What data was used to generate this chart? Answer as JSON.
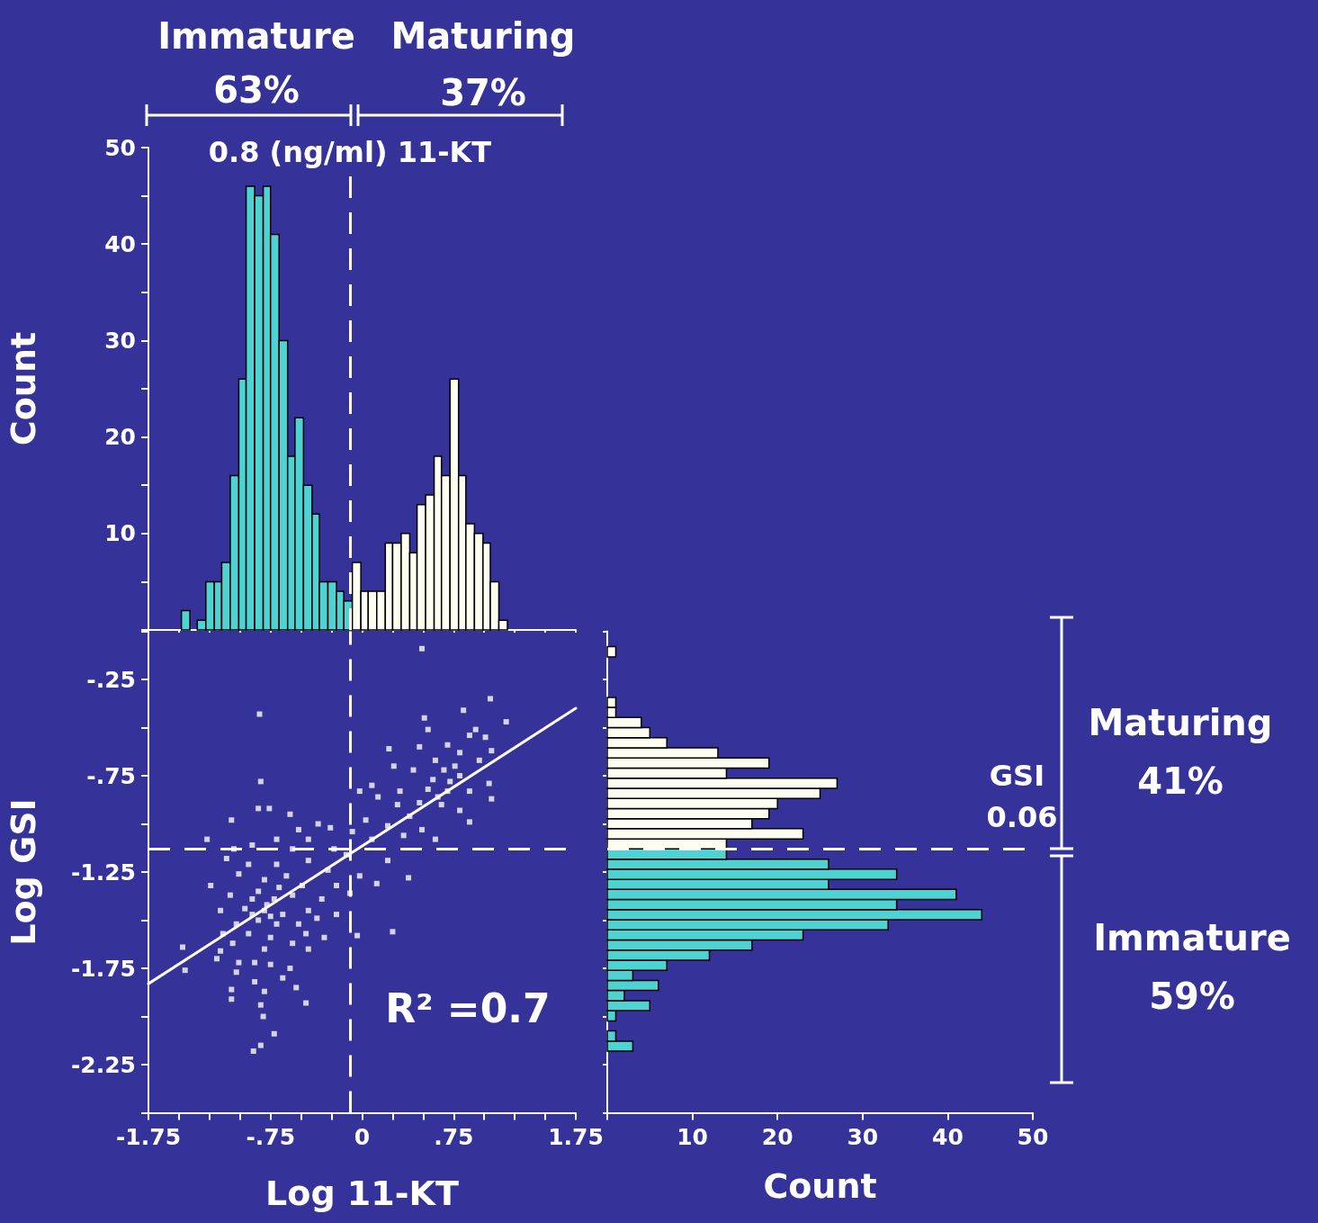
{
  "chart_data": [
    {
      "type": "histogram",
      "ylabel": "Count",
      "bins": [
        -1.48,
        -1.41,
        -1.35,
        -1.28,
        -1.21,
        -1.15,
        -1.08,
        -1.01,
        -0.95,
        -0.88,
        -0.81,
        -0.75,
        -0.68,
        -0.61,
        -0.55,
        -0.48,
        -0.41,
        -0.35,
        -0.28,
        -0.21,
        -0.15,
        -0.08,
        -0.01,
        0.05,
        0.12,
        0.19,
        0.25,
        0.32,
        0.39,
        0.45,
        0.52,
        0.59,
        0.65,
        0.72,
        0.79,
        0.85,
        0.92,
        0.99,
        1.05,
        1.12,
        1.19
      ],
      "series": [
        {
          "color": "#4fd2d2",
          "values": [
            2,
            0,
            1,
            5,
            5,
            7,
            16,
            26,
            46,
            45,
            46,
            41,
            30,
            18,
            22,
            15,
            12,
            5,
            5,
            4,
            3,
            null,
            null,
            null,
            null,
            null,
            null,
            null,
            null,
            null,
            null,
            null,
            null,
            null,
            null,
            null,
            null,
            null,
            null,
            null
          ]
        },
        {
          "color": "#fdfdf0",
          "values": [
            null,
            null,
            null,
            null,
            null,
            null,
            null,
            null,
            null,
            null,
            null,
            null,
            null,
            null,
            null,
            null,
            null,
            null,
            null,
            null,
            null,
            7,
            4,
            4,
            4,
            9,
            9,
            10,
            8,
            13,
            14,
            18,
            16,
            26,
            16,
            11,
            10,
            9,
            5,
            1
          ]
        }
      ],
      "xlim": [
        -1.75,
        1.75
      ],
      "xticks": [
        {
          "value": -1.75,
          "label": null
        },
        {
          "value": -1.5,
          "label": null
        },
        {
          "value": -1.25,
          "label": null
        },
        {
          "value": -1,
          "label": null
        },
        {
          "value": -0.75,
          "label": null
        },
        {
          "value": -0.5,
          "label": null
        },
        {
          "value": -0.25,
          "label": null
        },
        {
          "value": 0,
          "label": null
        },
        {
          "value": 0.25,
          "label": null
        },
        {
          "value": 0.5,
          "label": null
        },
        {
          "value": 0.75,
          "label": null
        },
        {
          "value": 1,
          "label": null
        },
        {
          "value": 1.25,
          "label": null
        },
        {
          "value": 1.5,
          "label": null
        },
        {
          "value": 1.75,
          "label": null
        }
      ],
      "ylim": [
        0,
        50
      ],
      "yticks": [
        {
          "value": 0,
          "label": null
        },
        {
          "value": 5,
          "label": null
        },
        10,
        {
          "value": 15,
          "label": null
        },
        20,
        {
          "value": 25,
          "label": null
        },
        30,
        {
          "value": 35,
          "label": null
        },
        40,
        {
          "value": 45,
          "label": null
        },
        50
      ],
      "tick_labels": "y",
      "ref_lines": [
        {
          "axis": "x",
          "value": -0.1,
          "label": "0.8 (ng/ml) 11-KT",
          "line_style": "dashed",
          "color": "#ffffff"
        }
      ],
      "annotations": [
        "Immature",
        "63%",
        "Maturing",
        "37%"
      ]
    },
    {
      "type": "scatter",
      "xlabel": "Log 11-KT",
      "ylabel": "Log GSI",
      "marker": "square",
      "series": [
        {
          "color": "#fdfdf0",
          "x": [
            0.49,
            1.05,
            -0.84,
            0.83,
            0.51,
            1.18,
            0.54,
            0.93,
            0.88,
            1.01,
            0.7,
            0.22,
            0.47,
            0.8,
            1.06,
            0.6,
            0.96,
            0.26,
            0.42,
            0.67,
            0.8,
            -0.83,
            0.08,
            1.04,
            -0.02,
            0.31,
            0.54,
            0.7,
            0.88,
            0.13,
            1.06,
            0.29,
            0.47,
            0.65,
            0.8,
            -0.85,
            -0.76,
            -0.59,
            0.39,
            0.88,
            -1.07,
            0.03,
            0.21,
            0.49,
            -0.52,
            -0.36,
            -0.26,
            0.6,
            -0.08,
            0.08,
            -1.27,
            -0.7,
            -0.44,
            0.34,
            -1.05,
            -0.9,
            -0.57,
            -0.23,
            -1.11,
            -0.13,
            0.21,
            -0.93,
            -0.7,
            -0.44,
            -0.28,
            -1.24,
            -1.01,
            -0.8,
            -0.62,
            -0.49,
            -0.21,
            -0.02,
            0.12,
            0.38,
            -0.1,
            -1.08,
            -0.9,
            -0.72,
            -0.57,
            -0.33,
            -1.16,
            -0.96,
            -0.8,
            -0.65,
            -0.44,
            -0.21,
            -1.03,
            -0.85,
            -0.7,
            -0.52,
            -0.37,
            -1.14,
            -0.93,
            -0.75,
            -0.46,
            -0.31,
            -0.04,
            0.25,
            -1.47,
            -1.06,
            -0.8,
            -0.57,
            -0.44,
            -1.16,
            -1.19,
            -1.01,
            -0.88,
            -0.75,
            -1.45,
            -1.03,
            -0.59,
            -0.88,
            -0.65,
            -1.07,
            -0.8,
            -0.54,
            -1.07,
            -0.46,
            -0.83,
            -0.81,
            -0.72,
            -0.83,
            -0.89,
            -0.78,
            -0.85,
            -0.75,
            -0.9,
            -0.68,
            0.72,
            0.62,
            0.76,
            0.58
          ],
          "values": [
            -0.09,
            -0.35,
            -0.43,
            -0.41,
            -0.45,
            -0.47,
            -0.51,
            -0.51,
            -0.54,
            -0.55,
            -0.59,
            -0.61,
            -0.6,
            -0.63,
            -0.62,
            -0.67,
            -0.67,
            -0.7,
            -0.72,
            -0.72,
            -0.75,
            -0.78,
            -0.8,
            -0.79,
            -0.83,
            -0.83,
            -0.82,
            -0.83,
            -0.83,
            -0.86,
            -0.87,
            -0.9,
            -0.89,
            -0.9,
            -0.93,
            -0.92,
            -0.92,
            -0.95,
            -0.96,
            -0.99,
            -0.98,
            -0.98,
            -1.01,
            -1.03,
            -1.03,
            -1.0,
            -1.02,
            -1.08,
            -1.04,
            -1.08,
            -1.08,
            -1.08,
            -1.08,
            -1.06,
            -1.13,
            -1.11,
            -1.13,
            -1.13,
            -1.18,
            -1.16,
            -1.19,
            -1.21,
            -1.21,
            -1.19,
            -1.24,
            -1.32,
            -1.26,
            -1.29,
            -1.27,
            -1.32,
            -1.32,
            -1.27,
            -1.31,
            -1.28,
            -1.36,
            -1.37,
            -1.39,
            -1.39,
            -1.37,
            -1.39,
            -1.45,
            -1.44,
            -1.45,
            -1.47,
            -1.45,
            -1.47,
            -1.52,
            -1.5,
            -1.52,
            -1.52,
            -1.49,
            -1.57,
            -1.57,
            -1.59,
            -1.57,
            -1.59,
            -1.58,
            -1.56,
            -1.64,
            -1.62,
            -1.65,
            -1.62,
            -1.65,
            -1.66,
            -1.7,
            -1.72,
            -1.72,
            -1.73,
            -1.76,
            -1.77,
            -1.75,
            -1.82,
            -1.8,
            -1.86,
            -1.87,
            -1.85,
            -1.91,
            -1.93,
            -1.94,
            -2.0,
            -2.09,
            -2.15,
            -2.18,
            -1.42,
            -1.35,
            -1.48,
            -1.47,
            -1.33,
            -0.78,
            -0.86,
            -0.7,
            -0.77
          ]
        },
        {
          "type": "line",
          "marker": "none",
          "color": "#fdfdf0",
          "x": [
            -1.75,
            1.75
          ],
          "values": [
            -1.83,
            -0.4
          ]
        }
      ],
      "xlim": [
        -1.75,
        1.75
      ],
      "xticks": [
        -1.75,
        {
          "value": -1.5,
          "label": null
        },
        {
          "value": -1.25,
          "label": null
        },
        {
          "value": -1,
          "label": null
        },
        {
          "value": -0.75,
          "label": "-.75"
        },
        {
          "value": -0.5,
          "label": null
        },
        {
          "value": -0.25,
          "label": null
        },
        0,
        {
          "value": 0.25,
          "label": null
        },
        {
          "value": 0.5,
          "label": null
        },
        {
          "value": 0.75,
          "label": ".75"
        },
        {
          "value": 1,
          "label": null
        },
        {
          "value": 1.25,
          "label": null
        },
        {
          "value": 1.5,
          "label": null
        },
        1.75
      ],
      "ylim": [
        -2.5,
        0
      ],
      "yticks": [
        {
          "value": 0,
          "label": null
        },
        {
          "value": -0.25,
          "label": "-.25"
        },
        {
          "value": -0.5,
          "label": null
        },
        {
          "value": -0.75,
          "label": "-.75"
        },
        {
          "value": -1,
          "label": null
        },
        -1.25,
        {
          "value": -1.5,
          "label": null
        },
        -1.75,
        {
          "value": -2,
          "label": null
        },
        -2.25,
        {
          "value": -2.5,
          "label": null
        }
      ],
      "ref_lines": [
        {
          "axis": "x",
          "value": -0.1,
          "line_style": "dashed",
          "color": "#ffffff"
        },
        {
          "axis": "y",
          "value": -1.13,
          "line_style": "dashed",
          "color": "#ffffff"
        }
      ],
      "annotations": [
        "R² =0.7"
      ]
    },
    {
      "type": "histogram",
      "orientation": "horizontal",
      "xlabel": "Count",
      "bins": [
        -2.18,
        -2.128,
        -2.075,
        -2.023,
        -1.97,
        -1.918,
        -1.865,
        -1.813,
        -1.76,
        -1.708,
        -1.655,
        -1.603,
        -1.55,
        -1.498,
        -1.445,
        -1.393,
        -1.34,
        -1.288,
        -1.235,
        -1.183,
        -1.13,
        -1.078,
        -1.025,
        -0.973,
        -0.92,
        -0.868,
        -0.815,
        -0.763,
        -0.71,
        -0.658,
        -0.605,
        -0.553,
        -0.5,
        -0.448,
        -0.395,
        -0.343,
        -0.29,
        -0.238,
        -0.185,
        -0.133,
        -0.08
      ],
      "series": [
        {
          "color": "#4fd2d2",
          "values": [
            3,
            1,
            0,
            1,
            5,
            2,
            6,
            3,
            7,
            12,
            17,
            23,
            33,
            44,
            34,
            41,
            26,
            34,
            26,
            14,
            null,
            null,
            null,
            null,
            null,
            null,
            null,
            null,
            null,
            null,
            null,
            null,
            null,
            null,
            null,
            null,
            null,
            null,
            null,
            null
          ]
        },
        {
          "color": "#fdfdf0",
          "values": [
            null,
            null,
            null,
            null,
            null,
            null,
            null,
            null,
            null,
            null,
            null,
            null,
            null,
            null,
            null,
            null,
            null,
            null,
            null,
            null,
            14,
            23,
            17,
            19,
            20,
            25,
            27,
            14,
            19,
            13,
            7,
            5,
            4,
            1,
            1,
            0,
            0,
            0,
            0,
            1
          ]
        }
      ],
      "xlim": [
        0,
        50
      ],
      "xticks": [
        {
          "value": 0,
          "label": null
        },
        10,
        20,
        30,
        40,
        50
      ],
      "ylim": [
        -2.5,
        0
      ],
      "yticks": [
        {
          "value": 0,
          "label": null
        },
        {
          "value": -0.25,
          "label": null
        },
        {
          "value": -0.5,
          "label": null
        },
        {
          "value": -0.75,
          "label": null
        },
        {
          "value": -1,
          "label": null
        },
        {
          "value": -1.25,
          "label": null
        },
        {
          "value": -1.5,
          "label": null
        },
        {
          "value": -1.75,
          "label": null
        },
        {
          "value": -2,
          "label": null
        },
        {
          "value": -2.25,
          "label": null
        },
        {
          "value": -2.5,
          "label": null
        }
      ],
      "tick_labels": "x",
      "ref_lines": [
        {
          "axis": "y",
          "value": -1.13,
          "label": "GSI 0.06",
          "line_style": "dashed",
          "color": "#ffffff"
        }
      ],
      "annotations": [
        "Maturing",
        "41%",
        "Immature",
        "59%"
      ]
    }
  ]
}
